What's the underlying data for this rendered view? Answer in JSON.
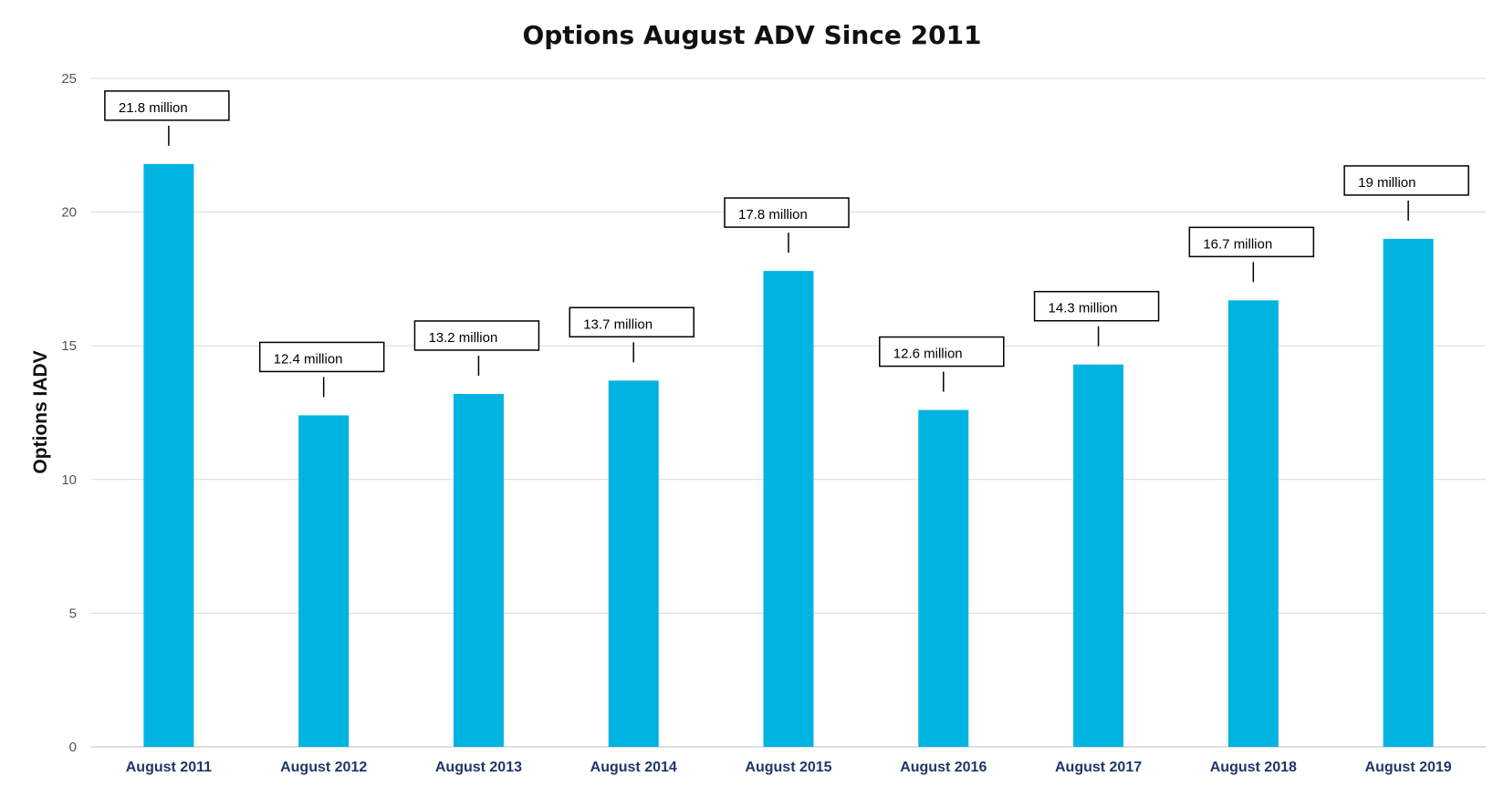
{
  "chart_data": {
    "type": "bar",
    "title": "Options August ADV Since 2011",
    "xlabel": "",
    "ylabel": "Options IADV",
    "ylim": [
      0,
      25
    ],
    "yticks": [
      0,
      5,
      10,
      15,
      20,
      25
    ],
    "grid": true,
    "categories": [
      "August 2011",
      "August 2012",
      "August 2013",
      "August 2014",
      "August 2015",
      "August 2016",
      "August 2017",
      "August 2018",
      "August 2019"
    ],
    "values": [
      21.8,
      12.4,
      13.2,
      13.7,
      17.8,
      12.6,
      14.3,
      16.7,
      19
    ],
    "data_labels": [
      "21.8 million",
      "12.4 million",
      "13.2 million",
      "13.7 million",
      "17.8 million",
      "12.6 million",
      "14.3 million",
      "16.7 million",
      "19 million"
    ],
    "colors": {
      "bar": "#00b4e1",
      "xtick": "#1f3668"
    }
  }
}
